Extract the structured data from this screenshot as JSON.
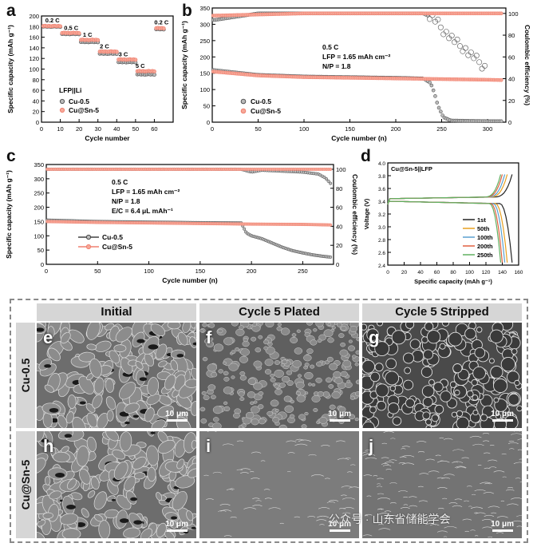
{
  "panels": {
    "a": {
      "letter": "a"
    },
    "b": {
      "letter": "b"
    },
    "c": {
      "letter": "c"
    },
    "d": {
      "letter": "d"
    }
  },
  "chart_data": [
    {
      "id": "a",
      "type": "scatter",
      "xlabel": "Cycle number",
      "ylabel": "Specific capacity (mAh g⁻¹)",
      "xlim": [
        0,
        70
      ],
      "ylim": [
        0,
        200
      ],
      "xticks": [
        0,
        10,
        20,
        30,
        40,
        50,
        60
      ],
      "yticks": [
        0,
        20,
        40,
        60,
        80,
        100,
        120,
        140,
        160,
        180,
        200
      ],
      "legend_title": "LFP||Li",
      "rate_labels": [
        {
          "text": "0.2 C",
          "x": 2,
          "y": 188
        },
        {
          "text": "0.5 C",
          "x": 12,
          "y": 174
        },
        {
          "text": "1 C",
          "x": 22,
          "y": 161
        },
        {
          "text": "2 C",
          "x": 31,
          "y": 139
        },
        {
          "text": "3 C",
          "x": 41,
          "y": 124
        },
        {
          "text": "5 C",
          "x": 50,
          "y": 102
        },
        {
          "text": "0.2 C",
          "x": 60,
          "y": 184
        }
      ],
      "series": [
        {
          "name": "Cu-0.5",
          "color": "#555555",
          "segments": [
            [
              1,
              10,
              180
            ],
            [
              11,
              20,
              166
            ],
            [
              21,
              30,
              151
            ],
            [
              31,
              40,
              129
            ],
            [
              41,
              50,
              113
            ],
            [
              51,
              60,
              90
            ],
            [
              61,
              65,
              175
            ]
          ]
        },
        {
          "name": "Cu@Sn-5",
          "color": "#f08070",
          "segments": [
            [
              1,
              10,
              181
            ],
            [
              11,
              20,
              168
            ],
            [
              21,
              30,
              155
            ],
            [
              31,
              40,
              133
            ],
            [
              41,
              50,
              118
            ],
            [
              51,
              60,
              96
            ],
            [
              61,
              65,
              177
            ]
          ]
        }
      ]
    },
    {
      "id": "b",
      "type": "scatter",
      "xlabel": "Cycle number (n)",
      "ylabel": "Specific capacity (mAh g⁻¹)",
      "y2label": "Coulombic efficiency (%)",
      "xlim": [
        0,
        320
      ],
      "ylim": [
        0,
        350
      ],
      "y2lim": [
        0,
        105
      ],
      "xticks": [
        0,
        50,
        100,
        150,
        200,
        250,
        300
      ],
      "yticks": [
        0,
        50,
        100,
        150,
        200,
        250,
        300,
        350
      ],
      "y2ticks": [
        0,
        20,
        40,
        60,
        80,
        100
      ],
      "annotations": [
        "0.5 C",
        "LFP = 1.65 mAh cm⁻²",
        "N/P = 1.8"
      ],
      "series": [
        {
          "name": "Cu-0.5",
          "color": "#555555",
          "capacity_points": [
            [
              1,
              160
            ],
            [
              50,
              145
            ],
            [
              100,
              140
            ],
            [
              150,
              138
            ],
            [
              200,
              136
            ],
            [
              230,
              134
            ],
            [
              238,
              120
            ],
            [
              242,
              90
            ],
            [
              246,
              50
            ],
            [
              252,
              15
            ],
            [
              260,
              5
            ],
            [
              300,
              3
            ],
            [
              315,
              3
            ]
          ],
          "ce_points": [
            [
              3,
              94
            ],
            [
              50,
              100
            ],
            [
              100,
              100
            ],
            [
              150,
              100
            ],
            [
              200,
              100
            ],
            [
              230,
              100
            ],
            [
              240,
              96
            ],
            [
              245,
              92
            ],
            [
              250,
              86
            ],
            [
              255,
              82
            ],
            [
              260,
              78
            ],
            [
              265,
              74
            ],
            [
              270,
              70
            ],
            [
              275,
              68
            ],
            [
              280,
              63
            ],
            [
              285,
              60
            ],
            [
              290,
              56
            ],
            [
              295,
              52
            ],
            [
              298,
              50
            ]
          ]
        },
        {
          "name": "Cu@Sn-5",
          "color": "#f08070",
          "capacity_points": [
            [
              1,
              155
            ],
            [
              50,
              143
            ],
            [
              100,
              138
            ],
            [
              150,
              136
            ],
            [
              200,
              134
            ],
            [
              250,
              132
            ],
            [
              300,
              130
            ],
            [
              315,
              129
            ]
          ],
          "ce_points": [
            [
              3,
              98
            ],
            [
              100,
              100
            ],
            [
              200,
              100
            ],
            [
              315,
              100
            ]
          ]
        }
      ]
    },
    {
      "id": "c",
      "type": "line",
      "xlabel": "Cycle number (n)",
      "ylabel": "Specific capacity (mAh g⁻¹)",
      "y2label": "Coulombic efficiency (%)",
      "xlim": [
        0,
        280
      ],
      "ylim": [
        0,
        350
      ],
      "y2lim": [
        0,
        105
      ],
      "xticks": [
        0,
        50,
        100,
        150,
        200,
        250
      ],
      "yticks": [
        0,
        50,
        100,
        150,
        200,
        250,
        300,
        350
      ],
      "y2ticks": [
        0,
        20,
        40,
        60,
        80,
        100
      ],
      "annotations": [
        "0.5 C",
        "LFP = 1.65 mAh cm⁻²",
        "N/P = 1.8",
        "E/C = 6.4 μL mAh⁻¹"
      ],
      "series": [
        {
          "name": "Cu-0.5",
          "color": "#444444",
          "capacity_points": [
            [
              1,
              155
            ],
            [
              50,
              150
            ],
            [
              100,
              148
            ],
            [
              150,
              146
            ],
            [
              190,
              145
            ],
            [
              195,
              110
            ],
            [
              200,
              100
            ],
            [
              210,
              90
            ],
            [
              220,
              75
            ],
            [
              230,
              60
            ],
            [
              240,
              48
            ],
            [
              250,
              40
            ],
            [
              260,
              33
            ],
            [
              270,
              28
            ],
            [
              278,
              25
            ]
          ],
          "ce_points": [
            [
              1,
              100
            ],
            [
              150,
              100
            ],
            [
              190,
              100
            ],
            [
              200,
              97
            ],
            [
              210,
              99
            ],
            [
              230,
              98
            ],
            [
              250,
              97
            ],
            [
              265,
              95
            ],
            [
              272,
              91
            ],
            [
              278,
              84
            ]
          ]
        },
        {
          "name": "Cu@Sn-5",
          "color": "#f08070",
          "capacity_points": [
            [
              1,
              150
            ],
            [
              50,
              147
            ],
            [
              100,
              145
            ],
            [
              150,
              143
            ],
            [
              200,
              141
            ],
            [
              250,
              140
            ],
            [
              278,
              138
            ]
          ],
          "ce_points": [
            [
              1,
              100
            ],
            [
              278,
              100
            ]
          ]
        }
      ]
    },
    {
      "id": "d",
      "type": "line",
      "title": "Cu@Sn-5||LFP",
      "xlabel": "Specific capacity (mAh g⁻¹)",
      "ylabel": "Voltage (V)",
      "xlim": [
        0,
        160
      ],
      "ylim": [
        2.4,
        4.0
      ],
      "xticks": [
        0,
        20,
        40,
        60,
        80,
        100,
        120,
        140,
        160
      ],
      "yticks": [
        2.4,
        2.6,
        2.8,
        3.0,
        3.2,
        3.4,
        3.6,
        3.8,
        4.0
      ],
      "series": [
        {
          "name": "1st",
          "color": "#222222",
          "capacity": 152
        },
        {
          "name": "50th",
          "color": "#e8a020",
          "capacity": 146
        },
        {
          "name": "100th",
          "color": "#5aa0d0",
          "capacity": 143
        },
        {
          "name": "200th",
          "color": "#e06040",
          "capacity": 140
        },
        {
          "name": "250th",
          "color": "#60b060",
          "capacity": 138
        }
      ]
    }
  ],
  "sem": {
    "columns": [
      "Initial",
      "Cycle 5 Plated",
      "Cycle 5 Stripped"
    ],
    "rows": [
      "Cu-0.5",
      "Cu@Sn-5"
    ],
    "images": [
      {
        "tag": "e",
        "scale": "10 μm"
      },
      {
        "tag": "f",
        "scale": "10 μm"
      },
      {
        "tag": "g",
        "scale": "10 μm"
      },
      {
        "tag": "h",
        "scale": "10 μm"
      },
      {
        "tag": "i",
        "scale": "10 μm"
      },
      {
        "tag": "j",
        "scale": "10 μm"
      }
    ],
    "watermark": "公众号 · 山东省储能学会"
  }
}
